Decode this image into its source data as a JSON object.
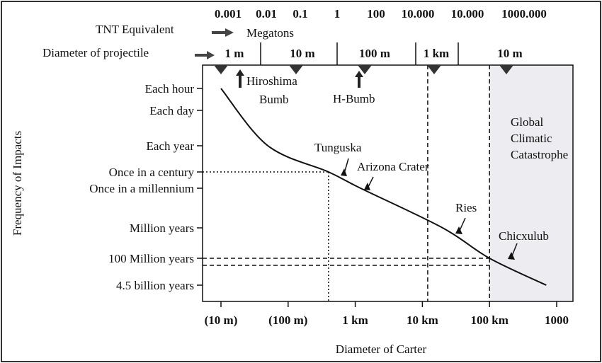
{
  "chart_data": {
    "type": "line",
    "title": "",
    "xlabel": "Diameter of Carter",
    "ylabel": "Frequency of Impacts",
    "x_scale": "log",
    "x_ticks": [
      {
        "value": 10,
        "label": "(10 m)"
      },
      {
        "value": 100,
        "label": "(100 m)"
      },
      {
        "value": 1000,
        "label": "1 km"
      },
      {
        "value": 10000,
        "label": "10 km"
      },
      {
        "value": 100000,
        "label": "100 km"
      },
      {
        "value": 1000000,
        "label": "1000"
      }
    ],
    "y_ticks": [
      "Each hour",
      "Each day",
      "Each year",
      "Once in a century",
      "Once in a millennium",
      "Million years",
      "100 Million years",
      "4.5 billion years"
    ],
    "series": [
      {
        "points": [
          {
            "x": 10,
            "y": "Each hour"
          },
          {
            "x": 50,
            "y": "Each year"
          },
          {
            "x": 400,
            "y": "Once in a century"
          },
          {
            "x": 1200,
            "y": "Once in a millennium"
          },
          {
            "x": 20000,
            "y": "Million years"
          },
          {
            "x": 100000,
            "y": "100 Million years"
          },
          {
            "x": 700000,
            "y": "4.5 billion years"
          }
        ]
      }
    ],
    "top_axes": {
      "tnt": {
        "label": "TNT Equivalent",
        "unit": "Megatons",
        "ticks": [
          "0.001",
          "0.01",
          "0.1",
          "1",
          "100",
          "10.000",
          "10.000",
          "1000.000"
        ]
      },
      "projectile": {
        "label": "Diameter of projectile",
        "ticks": [
          "1 m",
          "10 m",
          "100 m",
          "1 km",
          "10 m"
        ]
      }
    },
    "annotations": [
      {
        "text": "Hiroshima",
        "text2": "Bumb"
      },
      {
        "text": "H-Bumb"
      },
      {
        "text": "Tunguska"
      },
      {
        "text": "Arizona Crater"
      },
      {
        "text": "Ries"
      },
      {
        "text": "Chicxulub"
      }
    ],
    "shaded_region": {
      "from_x": 100000,
      "lines": [
        "Global",
        "Climatic",
        "Catastrophe"
      ],
      "color": "#ececf1"
    },
    "reference_lines": [
      {
        "x": 400,
        "y": "Once in a century"
      },
      {
        "x": 12000
      },
      {
        "x": 100000,
        "y": "100 Million years"
      }
    ],
    "legend": "none",
    "grid": false
  }
}
